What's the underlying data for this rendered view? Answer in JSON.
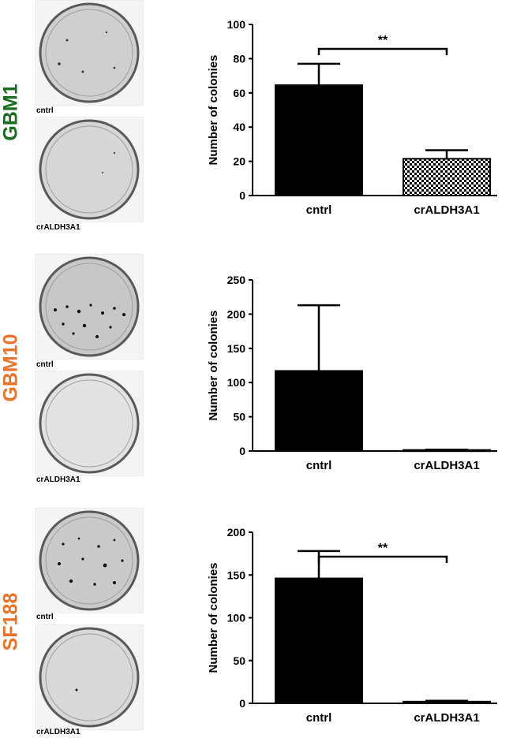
{
  "chart_data": [
    {
      "type": "bar",
      "cell_line": "GBM1",
      "cell_line_color": "#1a6b1f",
      "photo_labels": [
        "cntrl",
        "crALDH3A1"
      ],
      "categories": [
        "cntrl",
        "crALDH3A1"
      ],
      "values": [
        64.5,
        21.5
      ],
      "errors": [
        12.5,
        5.0
      ],
      "bar_styles": [
        "solid",
        "checker"
      ],
      "xlabel": "",
      "ylabel": "Number of colonies",
      "ylim": [
        0,
        100
      ],
      "yticks": [
        "0",
        "20",
        "40",
        "60",
        "80",
        "100"
      ],
      "significance": "**"
    },
    {
      "type": "bar",
      "cell_line": "GBM10",
      "cell_line_color": "#e8732a",
      "photo_labels": [
        "cntrl",
        "crALDH3A1"
      ],
      "categories": [
        "cntrl",
        "crALDH3A1"
      ],
      "values": [
        117,
        1.5
      ],
      "errors": [
        96,
        0.5
      ],
      "bar_styles": [
        "solid",
        "solid"
      ],
      "xlabel": "",
      "ylabel": "Number of colonies",
      "ylim": [
        0,
        250
      ],
      "yticks": [
        "0",
        "50",
        "100",
        "150",
        "200",
        "250"
      ],
      "significance": ""
    },
    {
      "type": "bar",
      "cell_line": "SF188",
      "cell_line_color": "#e8732a",
      "photo_labels": [
        "cntrl",
        "crALDH3A1"
      ],
      "categories": [
        "cntrl",
        "crALDH3A1"
      ],
      "values": [
        146,
        2
      ],
      "errors": [
        32,
        1
      ],
      "bar_styles": [
        "solid",
        "solid"
      ],
      "xlabel": "",
      "ylabel": "Number of colonies",
      "ylim": [
        0,
        200
      ],
      "yticks": [
        "0",
        "50",
        "100",
        "150",
        "200"
      ],
      "significance": "**"
    }
  ]
}
